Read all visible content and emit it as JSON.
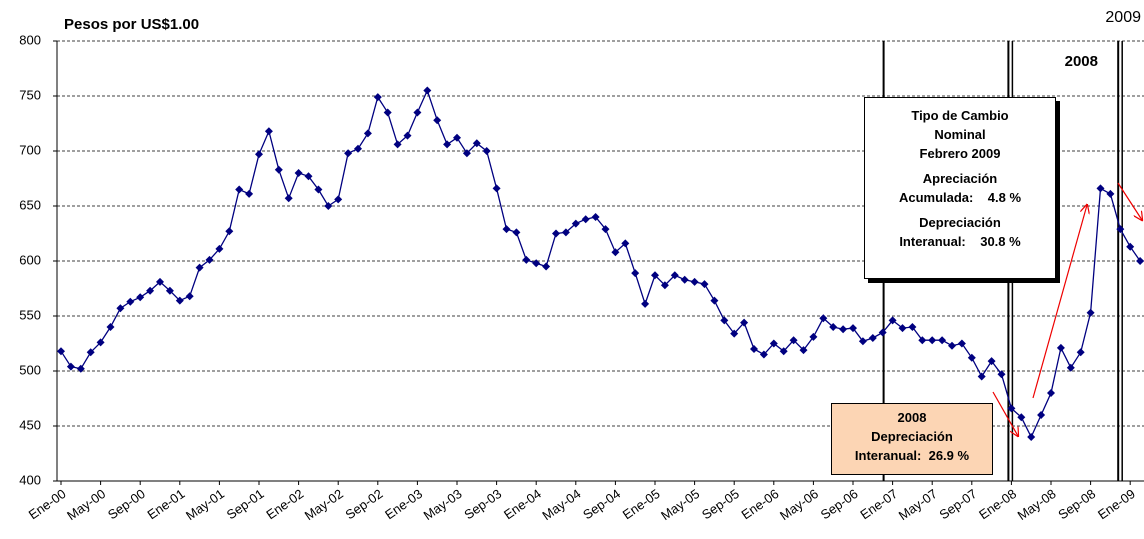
{
  "chart_data": {
    "type": "line",
    "y_label": "Pesos por US$1.00",
    "categories": [
      "Ene-00",
      null,
      null,
      null,
      "May-00",
      null,
      null,
      null,
      "Sep-00",
      null,
      null,
      null,
      "Ene-01",
      null,
      null,
      null,
      "May-01",
      null,
      null,
      null,
      "Sep-01",
      null,
      null,
      null,
      "Ene-02",
      null,
      null,
      null,
      "May-02",
      null,
      null,
      null,
      "Sep-02",
      null,
      null,
      null,
      "Ene-03",
      null,
      null,
      null,
      "May-03",
      null,
      null,
      null,
      "Sep-03",
      null,
      null,
      null,
      "Ene-04",
      null,
      null,
      null,
      "May-04",
      null,
      null,
      null,
      "Sep-04",
      null,
      null,
      null,
      "Ene-05",
      null,
      null,
      null,
      "May-05",
      null,
      null,
      null,
      "Sep-05",
      null,
      null,
      null,
      "Ene-06",
      null,
      null,
      null,
      "May-06",
      null,
      null,
      null,
      "Sep-06",
      null,
      null,
      null,
      "Ene-07",
      null,
      null,
      null,
      "May-07",
      null,
      null,
      null,
      "Sep-07",
      null,
      null,
      null,
      "Ene-08",
      null,
      null,
      null,
      "May-08",
      null,
      null,
      null,
      "Sep-08",
      null,
      null,
      null,
      "Ene-09",
      null
    ],
    "values": [
      518,
      504,
      502,
      517,
      526,
      540,
      557,
      563,
      567,
      573,
      581,
      573,
      564,
      568,
      594,
      601,
      611,
      627,
      665,
      661,
      697,
      718,
      683,
      657,
      680,
      677,
      665,
      650,
      656,
      698,
      702,
      716,
      749,
      735,
      706,
      714,
      735,
      755,
      728,
      706,
      712,
      698,
      707,
      700,
      666,
      629,
      626,
      601,
      598,
      595,
      625,
      626,
      634,
      638,
      640,
      629,
      608,
      616,
      589,
      561,
      587,
      578,
      587,
      583,
      581,
      579,
      564,
      546,
      534,
      544,
      520,
      515,
      525,
      518,
      528,
      519,
      531,
      548,
      540,
      538,
      539,
      527,
      530,
      535,
      546,
      539,
      540,
      528,
      528,
      528,
      523,
      525,
      512,
      495,
      509,
      497,
      466,
      458,
      440,
      460,
      480,
      521,
      503,
      517,
      553,
      666,
      661,
      629,
      613,
      600
    ],
    "color": "#000080",
    "ylim": [
      400,
      800
    ],
    "yticks": [
      400,
      450,
      500,
      550,
      600,
      650,
      700,
      750,
      800
    ],
    "grid": true,
    "annotations": {
      "year_2009": "2009",
      "year_2008": "2008",
      "box_2009": [
        "Tipo de Cambio",
        "Nominal",
        "Febrero 2009",
        "Apreciación",
        "Acumulada:    4.8 %",
        "Depreciación",
        "Interanual:    30.8 %"
      ],
      "box_2008": [
        "2008",
        "Depreciación",
        "Interanual:  26.9 %"
      ]
    }
  }
}
